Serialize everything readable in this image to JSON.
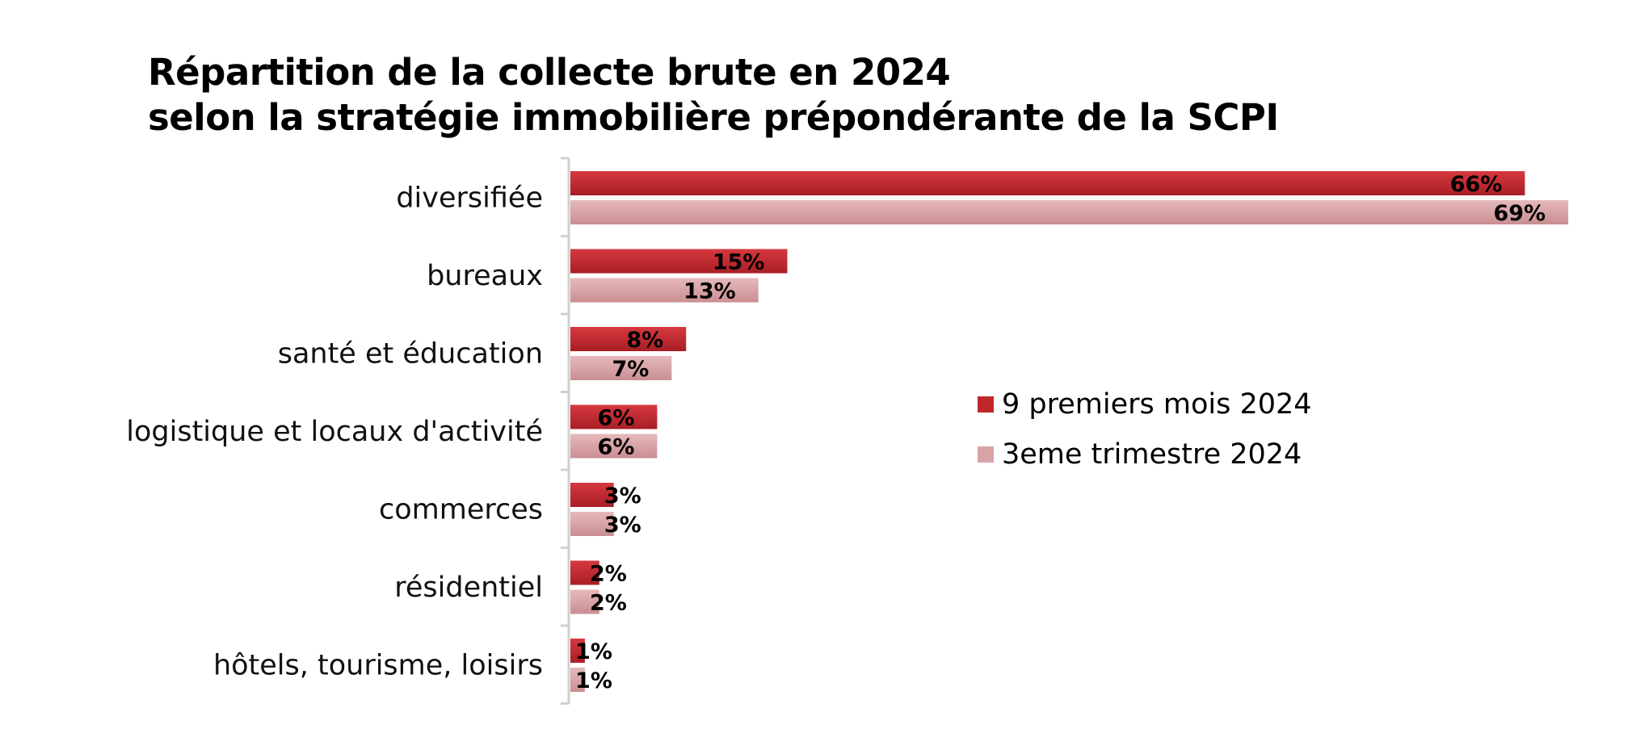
{
  "chart_data": {
    "type": "bar",
    "orientation": "horizontal",
    "title": [
      "Répartition de la collecte brute en 2024",
      "selon la stratégie immobilière prépondérante de la SCPI"
    ],
    "categories": [
      "diversifiée",
      "bureaux",
      "santé et éducation",
      "logistique et locaux d'activité",
      "commerces",
      "résidentiel",
      "hôtels, tourisme, loisirs"
    ],
    "series": [
      {
        "name": "9 premiers mois 2024",
        "color": "#c0272d",
        "values": [
          66,
          15,
          8,
          6,
          3,
          2,
          1
        ],
        "labels": [
          "66%",
          "15%",
          "8%",
          "6%",
          "3%",
          "2%",
          "1%"
        ]
      },
      {
        "name": "3eme trimestre 2024",
        "color": "#d9a3a6",
        "values": [
          69,
          13,
          7,
          6,
          3,
          2,
          1
        ],
        "labels": [
          "69%",
          "13%",
          "7%",
          "6%",
          "3%",
          "2%",
          "1%"
        ]
      }
    ],
    "unit": "%",
    "legend_position": "right",
    "grid": false
  }
}
